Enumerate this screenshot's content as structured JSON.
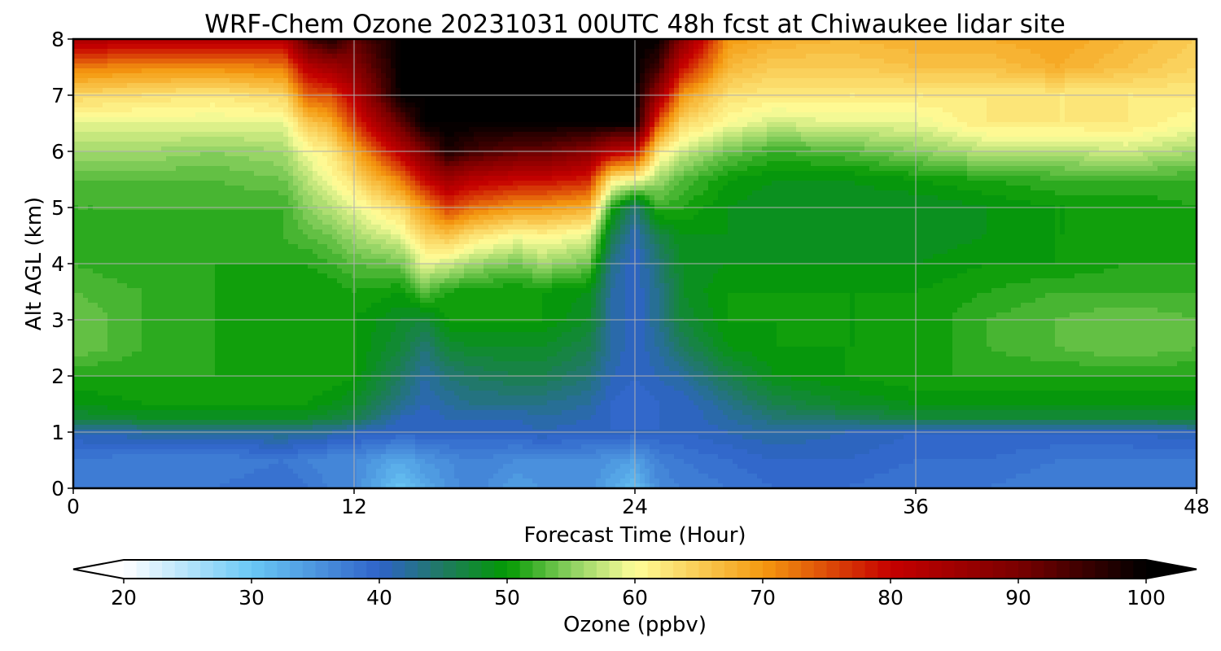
{
  "chart_data": {
    "type": "heatmap",
    "title": "WRF-Chem Ozone  20231031 00UTC 48h fcst at Chiwaukee lidar site",
    "xlabel": "Forecast Time (Hour)",
    "ylabel": "Alt AGL (km)",
    "xlim": [
      0,
      48
    ],
    "ylim": [
      0,
      8
    ],
    "x_ticks": [
      "0",
      "12",
      "24",
      "36",
      "48"
    ],
    "y_ticks": [
      "0",
      "1",
      "2",
      "3",
      "4",
      "5",
      "6",
      "7",
      "8"
    ],
    "grid": true,
    "colorbar": {
      "label": "Ozone  (ppbv)",
      "min": 20,
      "max": 100,
      "step": 1,
      "ticks": [
        "20",
        "30",
        "40",
        "50",
        "60",
        "70",
        "80",
        "90",
        "100"
      ],
      "extend": "both",
      "stops": [
        {
          "v": 20,
          "c": "#ffffff"
        },
        {
          "v": 30,
          "c": "#6ac8f5"
        },
        {
          "v": 40,
          "c": "#2f63c9"
        },
        {
          "v": 45,
          "c": "#1f7a60"
        },
        {
          "v": 50,
          "c": "#039a03"
        },
        {
          "v": 55,
          "c": "#8cd060"
        },
        {
          "v": 60,
          "c": "#fefe9a"
        },
        {
          "v": 70,
          "c": "#f59a10"
        },
        {
          "v": 80,
          "c": "#c60000"
        },
        {
          "v": 90,
          "c": "#7a0000"
        },
        {
          "v": 100,
          "c": "#000000"
        }
      ]
    },
    "times": [
      0,
      3,
      6,
      9,
      10,
      11,
      12,
      14,
      15,
      16,
      17,
      19,
      20,
      22,
      23,
      24,
      25,
      26,
      28,
      30,
      33,
      36,
      39,
      42,
      45,
      48
    ],
    "altitudes": [
      0,
      0.5,
      1,
      1.25,
      1.5,
      2,
      2.5,
      3,
      3.5,
      4,
      4.5,
      5,
      5.5,
      6,
      6.5,
      7,
      7.5,
      8
    ],
    "ozone": [
      [
        38,
        38,
        38,
        39,
        38,
        37,
        36,
        30,
        33,
        35,
        37,
        34,
        35,
        36,
        33,
        31,
        36,
        37,
        38,
        39,
        39,
        38,
        38,
        37,
        37,
        38
      ],
      [
        38,
        37,
        37,
        38,
        37,
        36,
        36,
        33,
        35,
        36,
        37,
        36,
        36,
        36,
        35,
        34,
        37,
        38,
        39,
        40,
        40,
        39,
        39,
        38,
        38,
        38
      ],
      [
        41,
        42,
        42,
        43,
        42,
        42,
        41,
        40,
        40,
        40,
        40,
        40,
        41,
        40,
        40,
        40,
        40,
        40,
        41,
        42,
        41,
        40,
        40,
        40,
        40,
        41
      ],
      [
        47,
        48,
        48,
        48,
        48,
        47,
        46,
        41,
        40,
        41,
        41,
        41,
        42,
        41,
        40,
        39,
        40,
        40,
        42,
        44,
        45,
        47,
        47,
        47,
        47,
        47
      ],
      [
        49,
        50,
        50,
        50,
        50,
        49,
        48,
        43,
        41,
        42,
        43,
        43,
        43,
        42,
        40,
        39,
        40,
        40,
        43,
        46,
        48,
        49,
        49,
        49,
        49,
        49
      ],
      [
        51,
        51,
        51,
        51,
        51,
        51,
        50,
        45,
        42,
        44,
        45,
        46,
        46,
        44,
        41,
        40,
        41,
        42,
        46,
        49,
        50,
        51,
        51,
        51,
        51,
        51
      ],
      [
        54,
        52,
        51,
        50,
        50,
        50,
        50,
        47,
        44,
        47,
        48,
        48,
        48,
        46,
        42,
        40,
        42,
        45,
        49,
        50,
        50,
        50,
        52,
        53,
        54,
        53
      ],
      [
        54,
        52,
        51,
        50,
        50,
        50,
        50,
        48,
        47,
        50,
        50,
        50,
        50,
        48,
        42,
        40,
        43,
        47,
        50,
        50,
        50,
        50,
        52,
        53,
        54,
        53
      ],
      [
        53,
        52,
        51,
        50,
        50,
        50,
        51,
        50,
        53,
        51,
        50,
        50,
        50,
        49,
        42,
        40,
        43,
        48,
        50,
        50,
        50,
        50,
        51,
        52,
        52,
        52
      ],
      [
        52,
        51,
        51,
        51,
        51,
        52,
        53,
        54,
        59,
        58,
        56,
        54,
        56,
        54,
        43,
        40,
        44,
        48,
        49,
        49,
        49,
        49,
        50,
        50,
        51,
        51
      ],
      [
        52,
        51,
        51,
        52,
        53,
        54,
        56,
        59,
        64,
        66,
        63,
        60,
        61,
        59,
        46,
        41,
        46,
        49,
        49,
        48,
        48,
        48,
        49,
        50,
        50,
        51
      ],
      [
        52,
        52,
        52,
        52,
        55,
        57,
        59,
        64,
        70,
        76,
        73,
        70,
        70,
        68,
        51,
        44,
        52,
        51,
        49,
        48,
        48,
        48,
        49,
        50,
        50,
        51
      ],
      [
        53,
        53,
        53,
        54,
        57,
        60,
        63,
        72,
        80,
        85,
        82,
        80,
        80,
        78,
        62,
        60,
        56,
        53,
        50,
        49,
        49,
        50,
        51,
        52,
        52,
        52
      ],
      [
        56,
        56,
        55,
        56,
        60,
        62,
        68,
        82,
        90,
        98,
        95,
        92,
        92,
        88,
        82,
        80,
        62,
        58,
        54,
        52,
        53,
        55,
        57,
        57,
        58,
        56
      ],
      [
        59,
        59,
        59,
        59,
        65,
        68,
        76,
        92,
        100,
        100,
        100,
        100,
        100,
        100,
        100,
        100,
        74,
        64,
        60,
        58,
        59,
        59,
        62,
        62,
        62,
        60
      ],
      [
        64,
        63,
        62,
        64,
        74,
        75,
        82,
        100,
        100,
        100,
        100,
        100,
        100,
        100,
        100,
        100,
        86,
        70,
        63,
        62,
        62,
        62,
        62,
        62,
        62,
        62
      ],
      [
        72,
        71,
        71,
        72,
        82,
        85,
        88,
        100,
        100,
        100,
        100,
        100,
        100,
        100,
        100,
        100,
        95,
        80,
        67,
        65,
        65,
        66,
        66,
        68,
        66,
        64
      ],
      [
        84,
        82,
        82,
        82,
        94,
        98,
        92,
        100,
        100,
        100,
        100,
        100,
        100,
        100,
        100,
        100,
        100,
        88,
        70,
        68,
        67,
        68,
        68,
        69,
        67,
        65
      ]
    ]
  }
}
